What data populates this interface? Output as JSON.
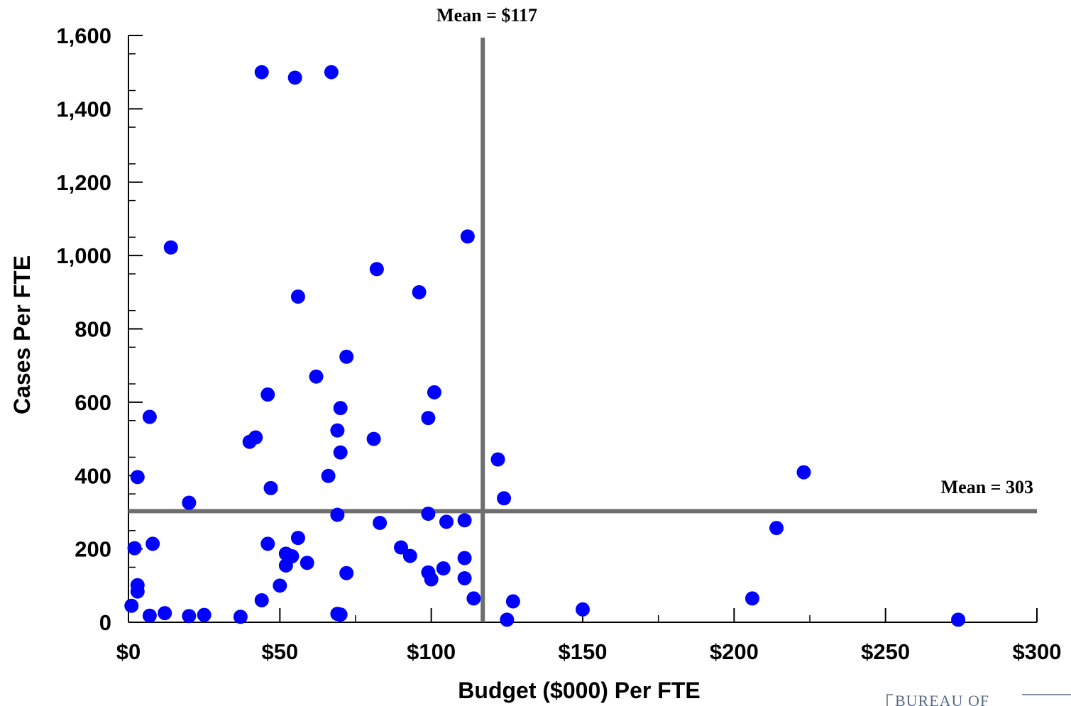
{
  "chart_data": {
    "type": "scatter",
    "title": "",
    "xlabel": "Budget ($000) Per FTE",
    "ylabel": "Cases Per FTE",
    "xlim": [
      0,
      300
    ],
    "ylim": [
      0,
      1600
    ],
    "x_ticks": [
      0,
      50,
      100,
      150,
      200,
      250,
      300
    ],
    "x_tick_labels": [
      "$0",
      "$50",
      "$100",
      "$150",
      "$200",
      "$250",
      "$300"
    ],
    "y_ticks": [
      0,
      200,
      400,
      600,
      800,
      1000,
      1200,
      1400,
      1600
    ],
    "y_tick_labels": [
      "0",
      "200",
      "400",
      "600",
      "800",
      "1,000",
      "1,200",
      "1,400",
      "1,600"
    ],
    "grid": false,
    "point_color": "#0000ff",
    "reference_line_color": "#6e6e6e",
    "reference_lines": {
      "vertical": {
        "x": 117,
        "label": "Mean = $117"
      },
      "horizontal": {
        "y": 303,
        "label": "Mean = 303"
      }
    },
    "points": [
      {
        "x": 44,
        "y": 1500
      },
      {
        "x": 55,
        "y": 1485
      },
      {
        "x": 67,
        "y": 1500
      },
      {
        "x": 14,
        "y": 1022
      },
      {
        "x": 112,
        "y": 1052
      },
      {
        "x": 82,
        "y": 963
      },
      {
        "x": 96,
        "y": 900
      },
      {
        "x": 56,
        "y": 888
      },
      {
        "x": 72,
        "y": 724
      },
      {
        "x": 62,
        "y": 670
      },
      {
        "x": 101,
        "y": 627
      },
      {
        "x": 46,
        "y": 621
      },
      {
        "x": 7,
        "y": 560
      },
      {
        "x": 99,
        "y": 557
      },
      {
        "x": 70,
        "y": 584
      },
      {
        "x": 69,
        "y": 523
      },
      {
        "x": 42,
        "y": 504
      },
      {
        "x": 40,
        "y": 492
      },
      {
        "x": 81,
        "y": 500
      },
      {
        "x": 70,
        "y": 463
      },
      {
        "x": 122,
        "y": 444
      },
      {
        "x": 3,
        "y": 396
      },
      {
        "x": 66,
        "y": 399
      },
      {
        "x": 223,
        "y": 409
      },
      {
        "x": 47,
        "y": 366
      },
      {
        "x": 124,
        "y": 338
      },
      {
        "x": 20,
        "y": 326
      },
      {
        "x": 99,
        "y": 296
      },
      {
        "x": 69,
        "y": 293
      },
      {
        "x": 111,
        "y": 278
      },
      {
        "x": 105,
        "y": 274
      },
      {
        "x": 83,
        "y": 271
      },
      {
        "x": 214,
        "y": 257
      },
      {
        "x": 56,
        "y": 230
      },
      {
        "x": 8,
        "y": 214
      },
      {
        "x": 46,
        "y": 214
      },
      {
        "x": 2,
        "y": 202
      },
      {
        "x": 90,
        "y": 204
      },
      {
        "x": 52,
        "y": 187
      },
      {
        "x": 54,
        "y": 180
      },
      {
        "x": 93,
        "y": 181
      },
      {
        "x": 111,
        "y": 175
      },
      {
        "x": 59,
        "y": 162
      },
      {
        "x": 52,
        "y": 155
      },
      {
        "x": 104,
        "y": 147
      },
      {
        "x": 99,
        "y": 136
      },
      {
        "x": 72,
        "y": 134
      },
      {
        "x": 100,
        "y": 117
      },
      {
        "x": 111,
        "y": 120
      },
      {
        "x": 3,
        "y": 101
      },
      {
        "x": 50,
        "y": 100
      },
      {
        "x": 3,
        "y": 84
      },
      {
        "x": 114,
        "y": 65
      },
      {
        "x": 206,
        "y": 65
      },
      {
        "x": 44,
        "y": 60
      },
      {
        "x": 127,
        "y": 57
      },
      {
        "x": 1,
        "y": 45
      },
      {
        "x": 150,
        "y": 35
      },
      {
        "x": 12,
        "y": 25
      },
      {
        "x": 7,
        "y": 18
      },
      {
        "x": 20,
        "y": 17
      },
      {
        "x": 25,
        "y": 20
      },
      {
        "x": 37,
        "y": 15
      },
      {
        "x": 69,
        "y": 23
      },
      {
        "x": 70,
        "y": 21
      },
      {
        "x": 125,
        "y": 7
      },
      {
        "x": 274,
        "y": 7
      }
    ]
  },
  "footer": {
    "logo_text": "BUREAU OF"
  }
}
